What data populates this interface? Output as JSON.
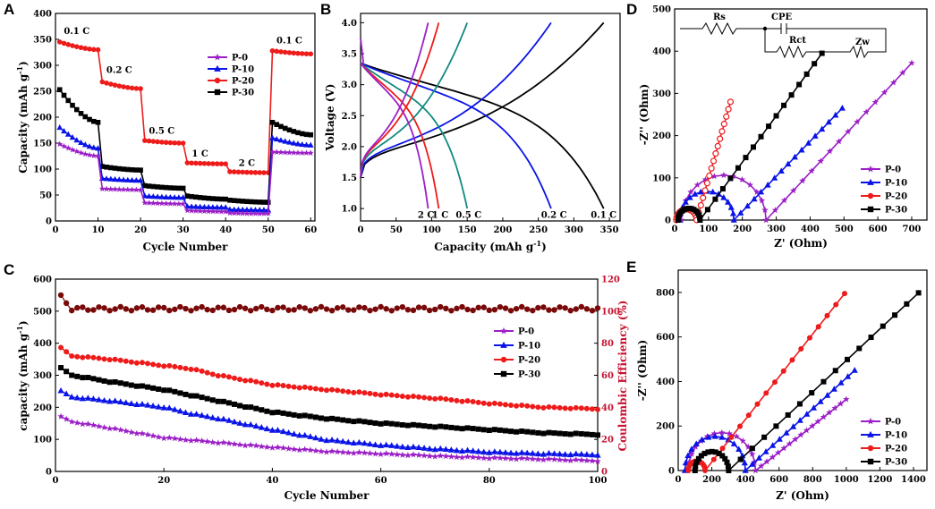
{
  "colors": {
    "P-0": "#9b1fc6",
    "P-10": "#0a14e6",
    "P-20": "#ee1b1b",
    "P-30": "#000000",
    "CE": "#7a0a0a",
    "B_05C": "#0f8a80"
  },
  "chart_data": [
    {
      "id": "A",
      "type": "line",
      "panel_label": "A",
      "xlabel": "Cycle Number",
      "ylabel": "Capacity (mAh g",
      "ylabel_sup": "-1",
      "ylabel_close": ")",
      "xlim": [
        0,
        61
      ],
      "ylim": [
        0,
        400
      ],
      "xticks": [
        "0",
        "10",
        "20",
        "30",
        "40",
        "50",
        "60"
      ],
      "yticks": [
        "0",
        "50",
        "100",
        "150",
        "200",
        "250",
        "300",
        "350",
        "400"
      ],
      "rate_labels": [
        "0.1 C",
        "0.2 C",
        "0.5 C",
        "1 C",
        "2 C",
        "0.1 C"
      ],
      "legend": [
        "P-0",
        "P-10",
        "P-20",
        "P-30"
      ],
      "series": [
        {
          "name": "P-20",
          "marker": "circle",
          "segments": [
            [
              345,
              330
            ],
            [
              268,
              255
            ],
            [
              155,
              150
            ],
            [
              112,
              110
            ],
            [
              95,
              93
            ],
            [
              328,
              322
            ]
          ]
        },
        {
          "name": "P-30",
          "marker": "square",
          "segments": [
            [
              253,
              190
            ],
            [
              105,
              98
            ],
            [
              68,
              63
            ],
            [
              48,
              42
            ],
            [
              40,
              36
            ],
            [
              190,
              166
            ]
          ]
        },
        {
          "name": "P-10",
          "marker": "triangle",
          "segments": [
            [
              180,
              140
            ],
            [
              82,
              78
            ],
            [
              48,
              45
            ],
            [
              28,
              26
            ],
            [
              22,
              21
            ],
            [
              160,
              146
            ]
          ]
        },
        {
          "name": "P-0",
          "marker": "star",
          "segments": [
            [
              148,
              125
            ],
            [
              62,
              60
            ],
            [
              35,
              33
            ],
            [
              20,
              18
            ],
            [
              15,
              14
            ],
            [
              133,
              131
            ]
          ]
        }
      ]
    },
    {
      "id": "B",
      "type": "line",
      "panel_label": "B",
      "xlabel": "Capacity (mAh g",
      "xlabel_sup": "-1",
      "xlabel_close": ")",
      "ylabel": "Voltage (V)",
      "xlim": [
        0,
        365
      ],
      "ylim": [
        0.8,
        4.15
      ],
      "xticks": [
        "0",
        "50",
        "100",
        "150",
        "200",
        "250",
        "300",
        "350"
      ],
      "yticks": [
        "1.0",
        "1.5",
        "2.0",
        "2.5",
        "3.0",
        "3.5",
        "4.0"
      ],
      "curve_labels": [
        "2 C",
        "1 C",
        "0.5 C",
        "0.2 C",
        "0.1 C"
      ],
      "curves": [
        {
          "rate": "0.1 C",
          "color_key": "P-30",
          "capacity": 342
        },
        {
          "rate": "0.2 C",
          "color_key": "P-10",
          "capacity": 268
        },
        {
          "rate": "0.5 C",
          "color_key": "B_05C",
          "capacity": 150
        },
        {
          "rate": "1 C",
          "color_key": "P-20",
          "capacity": 110
        },
        {
          "rate": "2 C",
          "color_key": "P-0",
          "capacity": 95
        }
      ]
    },
    {
      "id": "C",
      "type": "line",
      "panel_label": "C",
      "xlabel": "Cycle Number",
      "ylabel": "capacity (mAh g",
      "ylabel_sup": "-1",
      "ylabel_close": ")",
      "y2label": "Coulombic Efficiency (%)",
      "xlim": [
        0,
        100
      ],
      "ylim": [
        0,
        600
      ],
      "y2lim": [
        0,
        120
      ],
      "xticks": [
        "0",
        "20",
        "40",
        "60",
        "80",
        "100"
      ],
      "yticks": [
        "0",
        "100",
        "200",
        "300",
        "400",
        "500",
        "600"
      ],
      "y2ticks": [
        "0",
        "20",
        "40",
        "60",
        "80",
        "100",
        "120"
      ],
      "legend": [
        "P-0",
        "P-10",
        "P-20",
        "P-30"
      ],
      "ce_percent": {
        "first": 110,
        "second": 105,
        "steady": 101.5
      },
      "series": [
        {
          "name": "P-20",
          "marker": "circle",
          "points": [
            [
              1,
              385
            ],
            [
              3,
              360
            ],
            [
              10,
              350
            ],
            [
              20,
              330
            ],
            [
              25,
              320
            ],
            [
              30,
              300
            ],
            [
              35,
              285
            ],
            [
              40,
              270
            ],
            [
              50,
              255
            ],
            [
              60,
              240
            ],
            [
              70,
              228
            ],
            [
              80,
              212
            ],
            [
              90,
              200
            ],
            [
              100,
              195
            ]
          ]
        },
        {
          "name": "P-30",
          "marker": "square",
          "points": [
            [
              1,
              322
            ],
            [
              3,
              300
            ],
            [
              10,
              280
            ],
            [
              20,
              255
            ],
            [
              30,
              220
            ],
            [
              40,
              185
            ],
            [
              50,
              165
            ],
            [
              60,
              150
            ],
            [
              70,
              140
            ],
            [
              80,
              130
            ],
            [
              90,
              120
            ],
            [
              100,
              115
            ]
          ]
        },
        {
          "name": "P-10",
          "marker": "triangle",
          "points": [
            [
              1,
              250
            ],
            [
              3,
              232
            ],
            [
              10,
              220
            ],
            [
              20,
              200
            ],
            [
              25,
              180
            ],
            [
              30,
              165
            ],
            [
              40,
              130
            ],
            [
              50,
              98
            ],
            [
              60,
              82
            ],
            [
              70,
              70
            ],
            [
              80,
              60
            ],
            [
              90,
              55
            ],
            [
              100,
              52
            ]
          ]
        },
        {
          "name": "P-0",
          "marker": "star",
          "points": [
            [
              1,
              170
            ],
            [
              3,
              155
            ],
            [
              10,
              135
            ],
            [
              20,
              105
            ],
            [
              30,
              90
            ],
            [
              40,
              75
            ],
            [
              50,
              62
            ],
            [
              60,
              55
            ],
            [
              70,
              48
            ],
            [
              80,
              42
            ],
            [
              90,
              38
            ],
            [
              100,
              33
            ]
          ]
        }
      ]
    },
    {
      "id": "D",
      "type": "scatter",
      "panel_label": "D",
      "xlabel": "Z' (Ohm)",
      "ylabel": "-Z'' (Ohm)",
      "xlim": [
        0,
        745
      ],
      "ylim": [
        0,
        500
      ],
      "xticks": [
        "0",
        "100",
        "200",
        "300",
        "400",
        "500",
        "600",
        "700"
      ],
      "yticks": [
        "0",
        "100",
        "200",
        "300",
        "400",
        "500"
      ],
      "circuit_labels": [
        "Rs",
        "CPE",
        "Rct",
        "Zw"
      ],
      "legend": [
        "P-0",
        "P-10",
        "P-20",
        "P-30"
      ],
      "series": [
        {
          "name": "P-0",
          "marker": "star",
          "arc_start": 20,
          "arc_end": 270,
          "tail_end": [
            700,
            372
          ]
        },
        {
          "name": "P-10",
          "marker": "triangle",
          "arc_start": 15,
          "arc_end": 175,
          "tail_end": [
            495,
            265
          ]
        },
        {
          "name": "P-20",
          "marker": "circle",
          "arc_start": 5,
          "arc_end": 65,
          "tail_end": [
            165,
            280
          ]
        },
        {
          "name": "P-30",
          "marker": "square",
          "arc_start": 10,
          "arc_end": 75,
          "tail_end": [
            435,
            395
          ]
        }
      ]
    },
    {
      "id": "E",
      "type": "scatter",
      "panel_label": "E",
      "xlabel": "Z' (Ohm)",
      "ylabel": "-Z'' (Ohm)",
      "xlim": [
        0,
        1480
      ],
      "ylim": [
        0,
        900
      ],
      "xticks": [
        "0",
        "200",
        "400",
        "600",
        "800",
        "1000",
        "1200",
        "1400"
      ],
      "yticks": [
        "0",
        "200",
        "400",
        "600",
        "800"
      ],
      "legend": [
        "P-0",
        "P-10",
        "P-20",
        "P-30"
      ],
      "series": [
        {
          "name": "P-0",
          "marker": "star",
          "arc_start": 60,
          "arc_end": 460,
          "tail_end": [
            1000,
            320
          ]
        },
        {
          "name": "P-10",
          "marker": "triangle",
          "arc_start": 40,
          "arc_end": 400,
          "tail_end": [
            1050,
            450
          ]
        },
        {
          "name": "P-20",
          "marker": "circle",
          "arc_start": 60,
          "arc_end": 160,
          "tail_end": [
            990,
            795
          ]
        },
        {
          "name": "P-30",
          "marker": "square",
          "arc_start": 100,
          "arc_end": 300,
          "tail_end": [
            1430,
            798
          ]
        }
      ]
    }
  ]
}
